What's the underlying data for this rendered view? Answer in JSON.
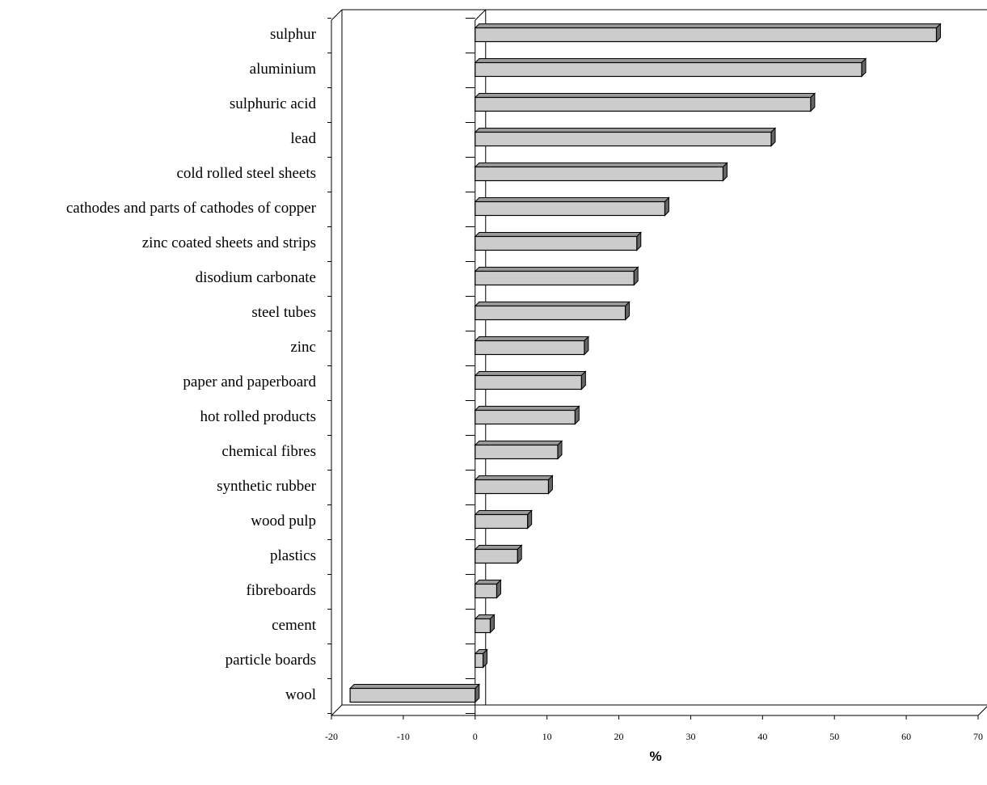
{
  "chart_data": {
    "type": "bar",
    "orientation": "horizontal",
    "style": "3d",
    "title": "",
    "xlabel": "%",
    "ylabel": "",
    "xlim": [
      -20,
      70
    ],
    "xticks": [
      -20,
      -10,
      0,
      10,
      20,
      30,
      40,
      50,
      60,
      70
    ],
    "xtick_labels": [
      "-20",
      "-10",
      "0",
      "10",
      "20",
      "30",
      "40",
      "50",
      "60",
      "70"
    ],
    "grid": false,
    "legend": "none",
    "colors": {
      "bar_front": "#cccccc",
      "bar_top": "#999999",
      "bar_side": "#666666",
      "stroke": "#000000"
    },
    "categories": [
      "sulphur",
      "aluminium",
      "sulphuric acid",
      "lead",
      "cold rolled steel sheets",
      "cathodes and parts of cathodes of copper",
      "zinc coated sheets and strips",
      "disodium carbonate",
      "steel tubes",
      "zinc",
      "paper and paperboard",
      "hot rolled products",
      "chemical fibres",
      "synthetic rubber",
      "wood pulp",
      "plastics",
      "fibreboards",
      "cement",
      "particle boards",
      "wool"
    ],
    "values": [
      64.2,
      53.8,
      46.7,
      41.2,
      34.5,
      26.4,
      22.5,
      22.1,
      20.9,
      15.2,
      14.8,
      13.9,
      11.5,
      10.2,
      7.3,
      5.9,
      3.0,
      2.1,
      1.1,
      -17.4
    ]
  }
}
